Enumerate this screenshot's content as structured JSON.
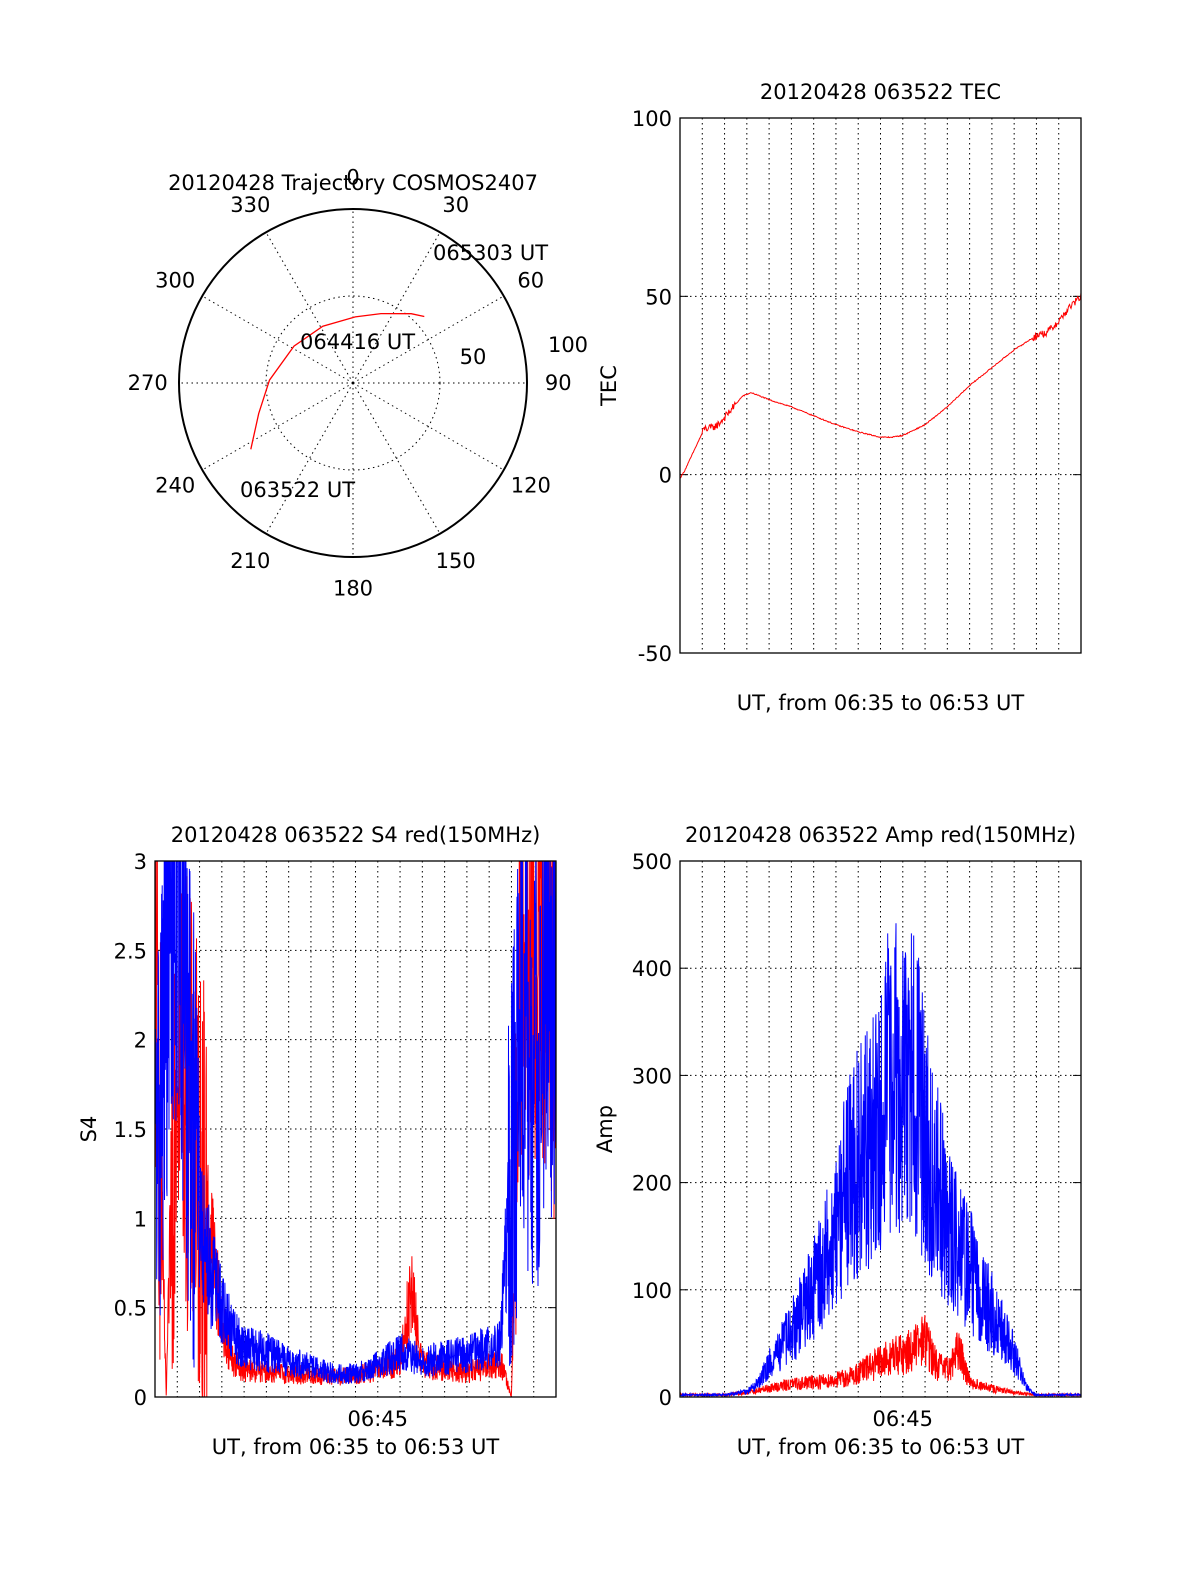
{
  "chart_data": [
    {
      "type": "polar",
      "title": "20120428 Trajectory COSMOS2407",
      "angle_labels": [
        {
          "angle": 0,
          "text": "0"
        },
        {
          "angle": 30,
          "text": "30"
        },
        {
          "angle": 60,
          "text": "60"
        },
        {
          "angle": 90,
          "text": "90"
        },
        {
          "angle": 120,
          "text": "120"
        },
        {
          "angle": 150,
          "text": "150"
        },
        {
          "angle": 180,
          "text": "180"
        },
        {
          "angle": 210,
          "text": "210"
        },
        {
          "angle": 240,
          "text": "240"
        },
        {
          "angle": 270,
          "text": "270"
        },
        {
          "angle": 300,
          "text": "300"
        },
        {
          "angle": 330,
          "text": "330"
        }
      ],
      "radial_labels": [
        "50",
        "100"
      ],
      "radial_values": [
        50,
        100
      ],
      "radial_max": 100,
      "trajectory": {
        "color": "#ff0000",
        "points": [
          {
            "az": 237,
            "zen": 70
          },
          {
            "az": 252,
            "zen": 57
          },
          {
            "az": 272,
            "zen": 48
          },
          {
            "az": 302,
            "zen": 40
          },
          {
            "az": 332,
            "zen": 37
          },
          {
            "az": 2,
            "zen": 38
          },
          {
            "az": 22,
            "zen": 43
          },
          {
            "az": 40,
            "zen": 52
          },
          {
            "az": 47,
            "zen": 56
          }
        ]
      },
      "annotations": [
        "063522 UT",
        "064416 UT",
        "065303 UT"
      ]
    },
    {
      "type": "line",
      "title": "20120428 063522 TEC",
      "xlabel": "UT, from 06:35 to 06:53 UT",
      "ylabel": "TEC",
      "xlim": [
        0,
        18
      ],
      "ylim": [
        -50,
        100
      ],
      "yticks": [
        "100",
        "50",
        "0",
        "-50"
      ],
      "ytick_values": [
        100,
        50,
        0,
        -50
      ],
      "xtick_labels": [],
      "grid": true,
      "series": [
        {
          "color": "#ff0000",
          "x": [
            0.0,
            0.2,
            0.5,
            0.8,
            1.1,
            1.4,
            1.7,
            2.0,
            2.4,
            2.8,
            3.2,
            4.0,
            5.0,
            6.0,
            7.0,
            8.0,
            9.0,
            9.5,
            10.0,
            11.0,
            12.0,
            13.0,
            14.0,
            15.0,
            15.5,
            16.0,
            16.5,
            17.0,
            17.5,
            18.0
          ],
          "y": [
            -1,
            1,
            5,
            9,
            13,
            13,
            14,
            16,
            19,
            22,
            23,
            21,
            19,
            16.5,
            14,
            12,
            10.5,
            10.5,
            11,
            14,
            19,
            25,
            30,
            35,
            37,
            39,
            40,
            43,
            47,
            50
          ]
        }
      ]
    },
    {
      "type": "line",
      "title": "20120428 063522 S4 red(150MHz)",
      "xlabel": "UT, from 06:35 to 06:53 UT",
      "ylabel": "S4",
      "xlim": [
        0,
        18
      ],
      "ylim": [
        0,
        3
      ],
      "yticks": [
        "3",
        "2.5",
        "2",
        "1.5",
        "1",
        "0.5",
        "0"
      ],
      "ytick_values": [
        3,
        2.5,
        2,
        1.5,
        1,
        0.5,
        0
      ],
      "xtick_labels": [
        {
          "x": 10,
          "text": "06:45"
        }
      ],
      "grid": true,
      "series": [
        {
          "color": "#ff0000",
          "x": [
            0.0,
            0.5,
            1.0,
            1.5,
            2.0,
            2.5,
            3.0,
            3.5,
            4.0,
            5.0,
            6.0,
            7.0,
            8.0,
            9.0,
            10.0,
            11.0,
            11.5,
            12.0,
            13.0,
            14.0,
            15.0,
            15.5,
            16.0,
            16.5,
            17.0,
            17.5,
            18.0
          ],
          "y": [
            2.6,
            0.0,
            2.3,
            1.6,
            1.2,
            0.9,
            0.4,
            0.2,
            0.15,
            0.14,
            0.13,
            0.12,
            0.11,
            0.12,
            0.15,
            0.2,
            0.6,
            0.18,
            0.16,
            0.14,
            0.17,
            0.2,
            0.0,
            2.8,
            2.3,
            2.6,
            2.2
          ]
        },
        {
          "color": "#0000ff",
          "x": [
            0.0,
            0.5,
            1.0,
            1.5,
            2.0,
            2.5,
            3.0,
            3.5,
            4.0,
            5.0,
            6.0,
            7.0,
            8.0,
            9.0,
            10.0,
            11.0,
            12.0,
            13.0,
            14.0,
            15.0,
            15.5,
            16.0,
            16.5,
            17.0,
            17.5,
            18.0
          ],
          "y": [
            1.2,
            2.3,
            2.9,
            1.8,
            1.0,
            0.7,
            0.5,
            0.35,
            0.28,
            0.25,
            0.2,
            0.17,
            0.13,
            0.13,
            0.18,
            0.25,
            0.2,
            0.22,
            0.24,
            0.28,
            0.3,
            1.3,
            2.0,
            1.7,
            2.2,
            2.0
          ]
        }
      ]
    },
    {
      "type": "line",
      "title": "20120428 063522 Amp red(150MHz)",
      "xlabel": "UT, from 06:35 to 06:53 UT",
      "ylabel": "Amp",
      "xlim": [
        0,
        18
      ],
      "ylim": [
        0,
        500
      ],
      "yticks": [
        "500",
        "400",
        "300",
        "200",
        "100",
        "0"
      ],
      "ytick_values": [
        500,
        400,
        300,
        200,
        100,
        0
      ],
      "xtick_labels": [
        {
          "x": 10,
          "text": "06:45"
        }
      ],
      "grid": true,
      "series": [
        {
          "color": "#ff0000",
          "x": [
            0.0,
            2.0,
            3.0,
            4.0,
            5.0,
            6.0,
            7.0,
            7.5,
            8.0,
            8.5,
            9.0,
            9.5,
            10.0,
            10.5,
            11.0,
            11.5,
            12.0,
            12.5,
            13.0,
            13.5,
            14.0,
            15.0,
            16.0,
            18.0
          ],
          "y": [
            2,
            2,
            4,
            8,
            12,
            14,
            16,
            18,
            22,
            28,
            32,
            38,
            40,
            45,
            55,
            30,
            25,
            45,
            15,
            10,
            8,
            4,
            2,
            2
          ]
        },
        {
          "color": "#0000ff",
          "x": [
            0.0,
            2.0,
            3.0,
            3.5,
            4.0,
            5.0,
            6.0,
            7.0,
            7.5,
            8.0,
            8.5,
            9.0,
            9.5,
            10.0,
            10.5,
            11.0,
            11.5,
            12.0,
            12.5,
            13.0,
            13.5,
            14.0,
            14.5,
            15.0,
            15.5,
            16.0,
            18.0
          ],
          "y": [
            2,
            2,
            5,
            12,
            30,
            60,
            100,
            150,
            200,
            220,
            230,
            250,
            310,
            280,
            300,
            240,
            200,
            160,
            140,
            120,
            90,
            80,
            60,
            40,
            10,
            2,
            2
          ]
        }
      ]
    }
  ]
}
